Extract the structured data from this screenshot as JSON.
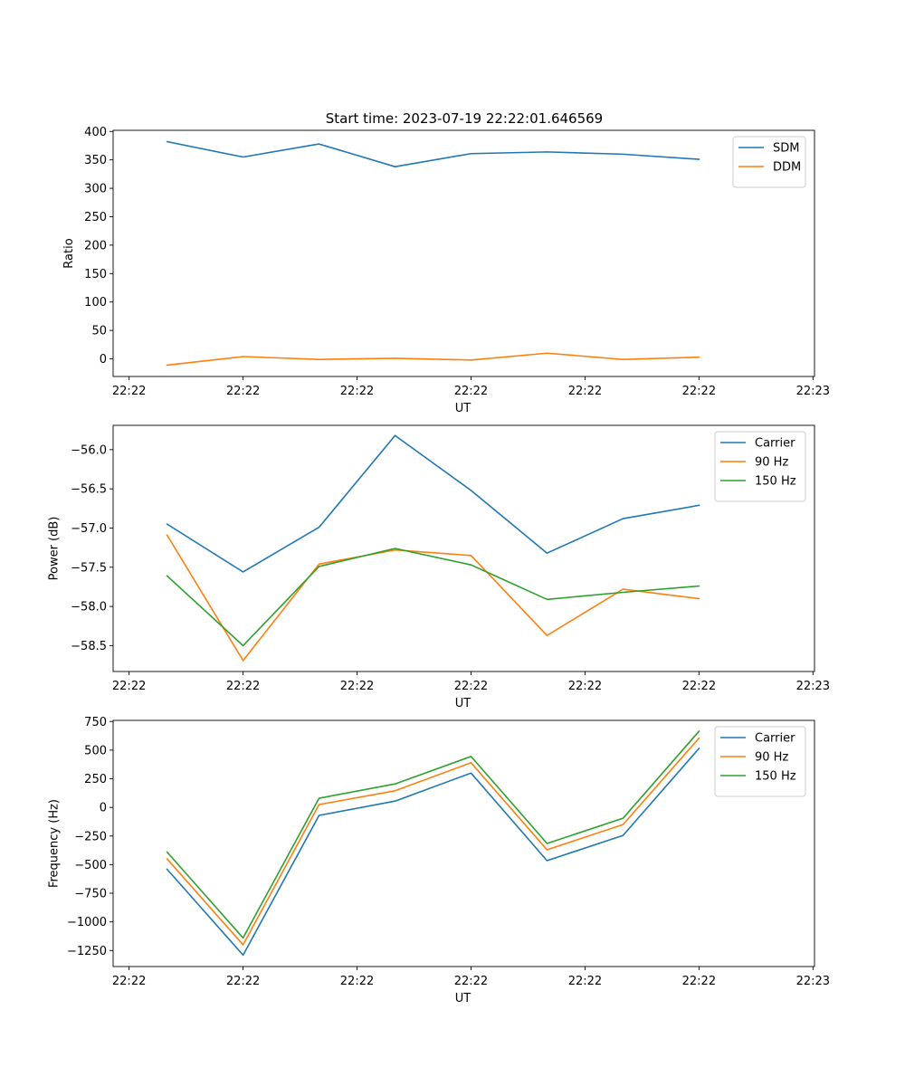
{
  "figure_title": "Start time: 2023-07-19 22:22:01.646569",
  "chart_data": [
    {
      "type": "line",
      "title": "Start time: 2023-07-19 22:22:01.646569",
      "xlabel": "UT",
      "ylabel": "Ratio",
      "x": [
        1,
        2,
        3,
        4,
        5,
        6,
        7,
        8
      ],
      "xlim": [
        0.29,
        9.52
      ],
      "ylim": [
        -31,
        402
      ],
      "xticks": [
        0.5,
        2,
        3.5,
        5,
        6.5,
        8,
        9.5
      ],
      "xtick_labels": [
        "22:22",
        "22:22",
        "22:22",
        "22:22",
        "22:22",
        "22:22",
        "22:23"
      ],
      "yticks": [
        0,
        50,
        100,
        150,
        200,
        250,
        300,
        350,
        400
      ],
      "ytick_labels": [
        "0",
        "50",
        "100",
        "150",
        "200",
        "250",
        "300",
        "350",
        "400"
      ],
      "legend": "upper right",
      "series": [
        {
          "name": "SDM",
          "color": "#1f77b4",
          "values": [
            382,
            355,
            378,
            338,
            361,
            364,
            360,
            351
          ]
        },
        {
          "name": "DDM",
          "color": "#ff7f0e",
          "values": [
            -11,
            4,
            -1,
            1,
            -2,
            10,
            -1,
            3
          ]
        }
      ]
    },
    {
      "type": "line",
      "title": "",
      "xlabel": "UT",
      "ylabel": "Power (dB)",
      "x": [
        1,
        2,
        3,
        4,
        5,
        6,
        7,
        8
      ],
      "xlim": [
        0.29,
        9.52
      ],
      "ylim": [
        -58.83,
        -55.69
      ],
      "xticks": [
        0.5,
        2,
        3.5,
        5,
        6.5,
        8,
        9.5
      ],
      "xtick_labels": [
        "22:22",
        "22:22",
        "22:22",
        "22:22",
        "22:22",
        "22:22",
        "22:23"
      ],
      "yticks": [
        -58.5,
        -58.0,
        -57.5,
        -57.0,
        -56.5,
        -56.0
      ],
      "ytick_labels": [
        "−58.5",
        "−58.0",
        "−57.5",
        "−57.0",
        "−56.5",
        "−56.0"
      ],
      "legend": "upper right",
      "series": [
        {
          "name": "Carrier",
          "color": "#1f77b4",
          "values": [
            -56.95,
            -57.56,
            -56.99,
            -55.82,
            -56.52,
            -57.32,
            -56.88,
            -56.71
          ]
        },
        {
          "name": "90 Hz",
          "color": "#ff7f0e",
          "values": [
            -57.09,
            -58.69,
            -57.46,
            -57.28,
            -57.35,
            -58.37,
            -57.78,
            -57.9
          ]
        },
        {
          "name": "150 Hz",
          "color": "#2ca02c",
          "values": [
            -57.61,
            -58.5,
            -57.49,
            -57.26,
            -57.47,
            -57.91,
            -57.82,
            -57.74
          ]
        }
      ]
    },
    {
      "type": "line",
      "title": "",
      "xlabel": "UT",
      "ylabel": "Frequency (Hz)",
      "x": [
        1,
        2,
        3,
        4,
        5,
        6,
        7,
        8
      ],
      "xlim": [
        0.29,
        9.52
      ],
      "ylim": [
        -1390,
        760
      ],
      "xticks": [
        0.5,
        2,
        3.5,
        5,
        6.5,
        8,
        9.5
      ],
      "xtick_labels": [
        "22:22",
        "22:22",
        "22:22",
        "22:22",
        "22:22",
        "22:22",
        "22:23"
      ],
      "yticks": [
        -1250,
        -1000,
        -750,
        -500,
        -250,
        0,
        250,
        500,
        750
      ],
      "ytick_labels": [
        "−1250",
        "−1000",
        "−750",
        "−500",
        "−250",
        "0",
        "250",
        "500",
        "750"
      ],
      "legend": "upper right",
      "series": [
        {
          "name": "Carrier",
          "color": "#1f77b4",
          "values": [
            -540,
            -1290,
            -70,
            55,
            300,
            -465,
            -245,
            515
          ]
        },
        {
          "name": "90 Hz",
          "color": "#ff7f0e",
          "values": [
            -450,
            -1200,
            25,
            145,
            390,
            -370,
            -150,
            605
          ]
        },
        {
          "name": "150 Hz",
          "color": "#2ca02c",
          "values": [
            -390,
            -1140,
            80,
            205,
            445,
            -315,
            -95,
            665
          ]
        }
      ]
    }
  ]
}
